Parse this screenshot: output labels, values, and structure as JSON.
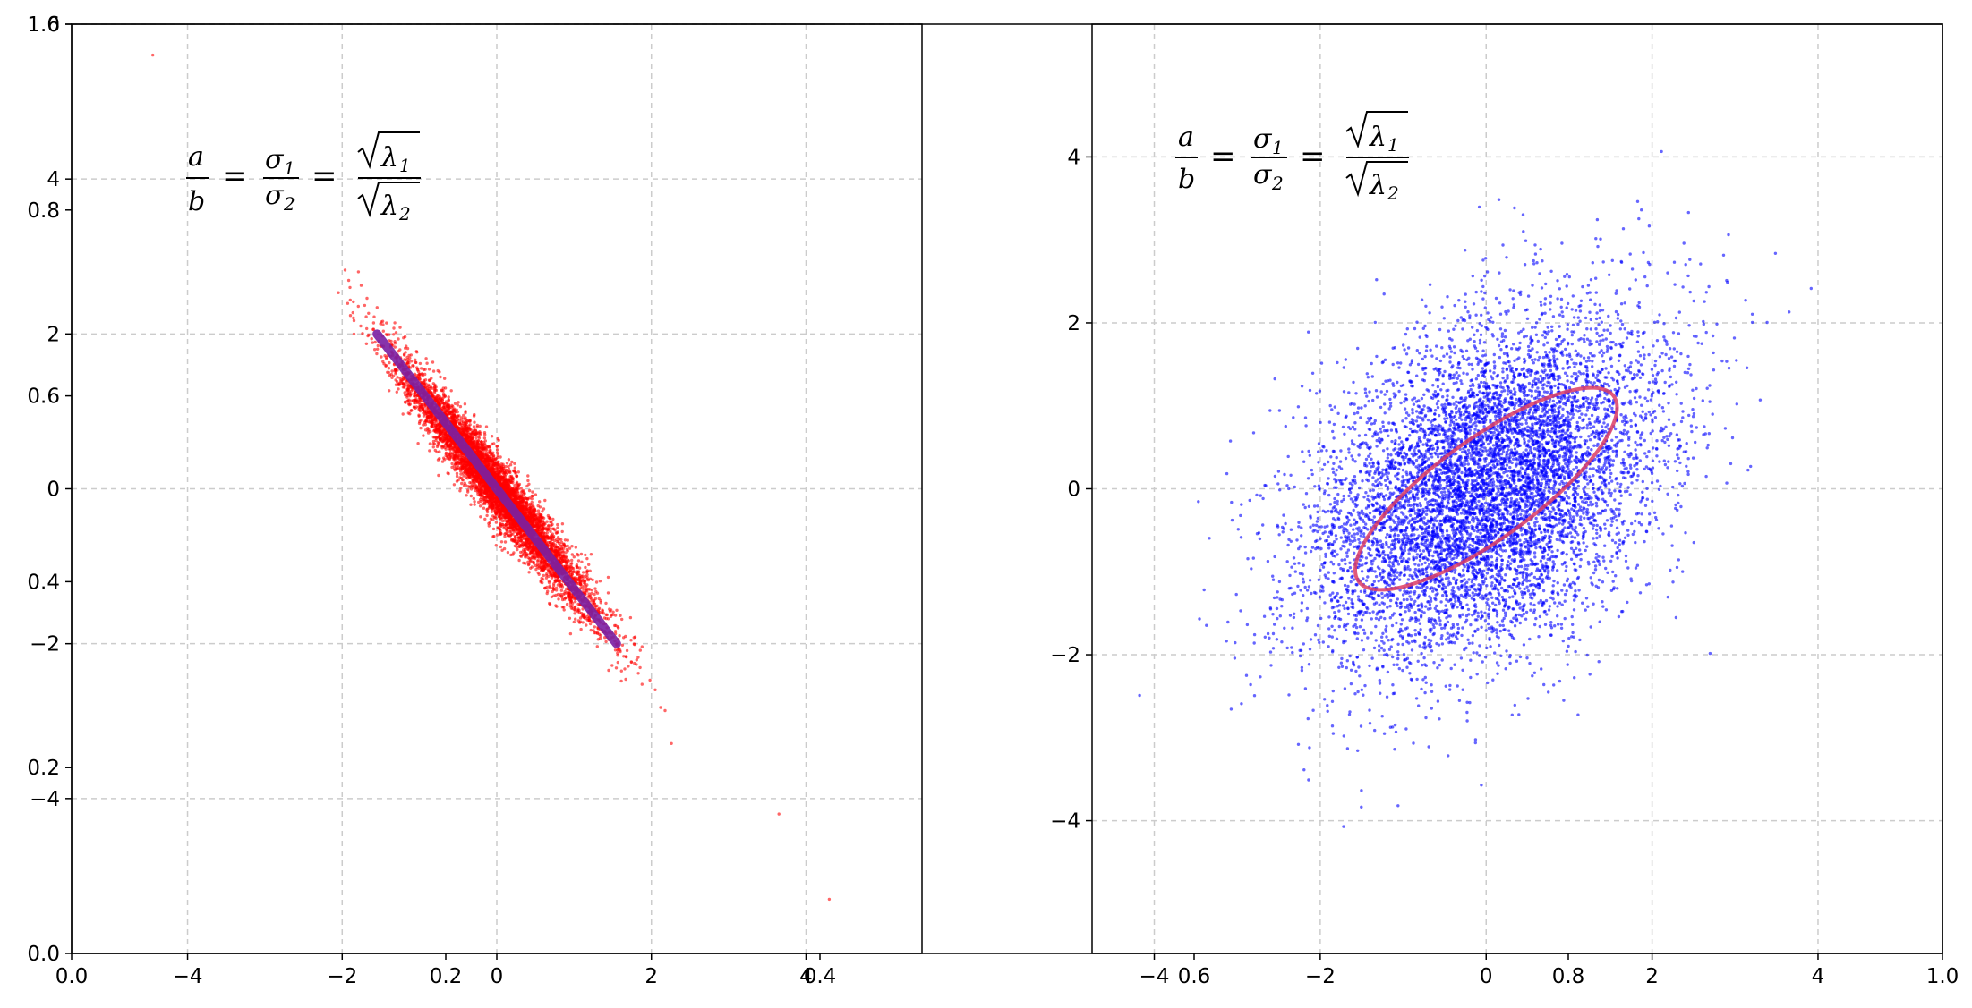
{
  "chart_data": [
    {
      "type": "scatter",
      "panel": "left",
      "title": "",
      "xlabel": "",
      "ylabel": "",
      "xlim": [
        -5.5,
        5.5
      ],
      "ylim": [
        -6,
        6
      ],
      "x_ticks": [
        "−4",
        "−2",
        "0",
        "2",
        "4"
      ],
      "x_tick_values": [
        -4,
        -2,
        0,
        2,
        4
      ],
      "y_ticks": [
        "−4",
        "−2",
        "0",
        "2",
        "4",
        "6"
      ],
      "y_tick_values": [
        -4,
        -2,
        0,
        2,
        4,
        6
      ],
      "grid": true,
      "grid_style": "dashed",
      "point_color": "#ff0000",
      "line_color": "#7b1fa2",
      "n_points": 6000,
      "distribution": {
        "mean": [
          0,
          0
        ],
        "principal_direction": [
          1,
          -1.29
        ],
        "sigma_major": 1.02,
        "sigma_minor": 0.13
      },
      "outliers": [
        [
          -4.45,
          5.6
        ],
        [
          3.65,
          -4.2
        ],
        [
          4.3,
          -5.3
        ]
      ],
      "axis_line": {
        "from": [
          -1.55,
          2.0
        ],
        "to": [
          1.55,
          -2.0
        ]
      },
      "formula": {
        "a": "a",
        "b": "b",
        "s1": "σ",
        "s1_sub": "1",
        "s2": "σ",
        "s2_sub": "2",
        "l1": "λ",
        "l1_sub": "1",
        "l2": "λ",
        "l2_sub": "2",
        "eq": "="
      }
    },
    {
      "type": "scatter",
      "panel": "right",
      "title": "",
      "xlabel": "",
      "ylabel": "",
      "xlim": [
        -4.75,
        5.5
      ],
      "ylim": [
        -5.6,
        5.6
      ],
      "x_ticks": [
        "−4",
        "−2",
        "0",
        "2",
        "4"
      ],
      "x_tick_values": [
        -4,
        -2,
        0,
        2,
        4
      ],
      "y_ticks": [
        "−4",
        "−2",
        "0",
        "2",
        "4"
      ],
      "y_tick_values": [
        -4,
        -2,
        0,
        2,
        4
      ],
      "grid": true,
      "grid_style": "dashed",
      "point_color": "#0000ff",
      "ellipse_color": "#dc3c64",
      "n_points": 8000,
      "distribution": {
        "mean": [
          0,
          0
        ],
        "covariance": [
          [
            1.08,
            0.42
          ],
          [
            0.42,
            1.05
          ]
        ]
      },
      "ellipse": {
        "center": [
          0,
          0
        ],
        "angle_deg": 36,
        "semi_major": 1.9,
        "semi_minor": 0.6
      },
      "formula": {
        "a": "a",
        "b": "b",
        "s1": "σ",
        "s1_sub": "1",
        "s2": "σ",
        "s2_sub": "2",
        "l1": "λ",
        "l1_sub": "1",
        "l2": "λ",
        "l2_sub": "2",
        "eq": "="
      }
    }
  ],
  "overlay_axes": {
    "x_ticks": [
      "0.0",
      "0.2",
      "0.4",
      "0.6",
      "0.8",
      "1.0"
    ],
    "y_ticks": [
      "0.0",
      "0.2",
      "0.4",
      "0.6",
      "0.8",
      "1.0"
    ]
  }
}
